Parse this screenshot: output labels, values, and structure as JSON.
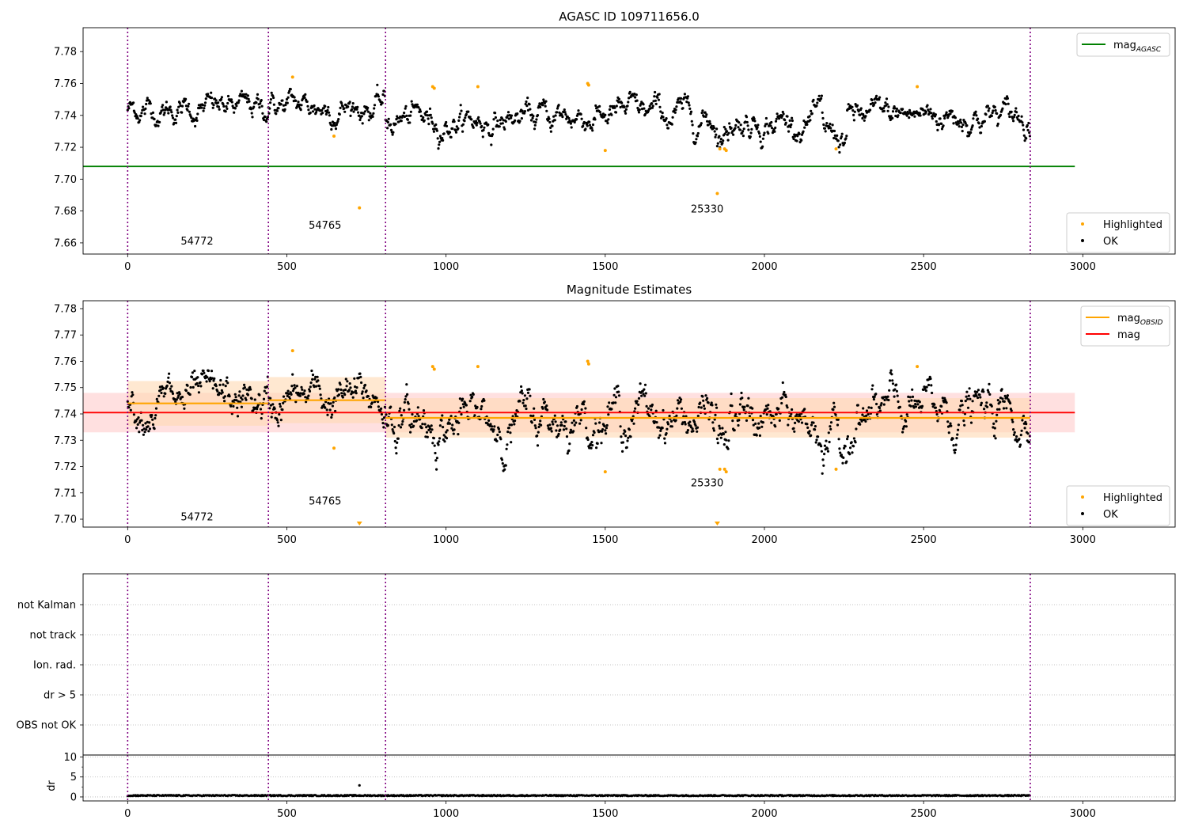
{
  "colors": {
    "ok": "#000000",
    "highlighted": "#ffa500",
    "agasc": "#008000",
    "mag": "#ff0000",
    "mag_obsid": "#ffa500",
    "obs_boundary": "#800080",
    "mag_band": "#ffcccc",
    "obsid_band": "#ffd9b3"
  },
  "chart_data": [
    {
      "type": "scatter",
      "title": "AGASC ID 109711656.0",
      "xlim": [
        -140,
        3290
      ],
      "ylim": [
        7.653,
        7.795
      ],
      "xticks": [
        "0",
        "500",
        "1000",
        "1500",
        "2000",
        "2500",
        "3000"
      ],
      "xtick_values": [
        0,
        500,
        1000,
        1500,
        2000,
        2500,
        3000
      ],
      "yticks": [
        "7.66",
        "7.68",
        "7.70",
        "7.72",
        "7.74",
        "7.76",
        "7.78"
      ],
      "ytick_values": [
        7.66,
        7.68,
        7.7,
        7.72,
        7.74,
        7.76,
        7.78
      ],
      "obs_boundaries": [
        0,
        442,
        810,
        2835
      ],
      "obs_labels": [
        {
          "text": "54772",
          "x": 218,
          "y": 7.659
        },
        {
          "text": "54765",
          "x": 620,
          "y": 7.669
        },
        {
          "text": "25330",
          "x": 1820,
          "y": 7.679
        }
      ],
      "lines": [
        {
          "name": "mag_AGASC",
          "y": 7.708,
          "x": [
            -140,
            2975
          ]
        }
      ],
      "ok_segments": [
        {
          "x0": 0,
          "x1": 442,
          "mean": 7.744,
          "spread": 0.0052
        },
        {
          "x0": 442,
          "x1": 810,
          "mean": 7.7455,
          "spread": 0.0055
        },
        {
          "x0": 810,
          "x1": 2835,
          "mean": 7.7385,
          "spread": 0.0058
        }
      ],
      "highlighted": [
        {
          "x": 518,
          "y": 7.764
        },
        {
          "x": 648,
          "y": 7.727
        },
        {
          "x": 728,
          "y": 7.682
        },
        {
          "x": 958,
          "y": 7.758
        },
        {
          "x": 963,
          "y": 7.757
        },
        {
          "x": 1100,
          "y": 7.758
        },
        {
          "x": 1445,
          "y": 7.76
        },
        {
          "x": 1448,
          "y": 7.759
        },
        {
          "x": 1500,
          "y": 7.718
        },
        {
          "x": 1852,
          "y": 7.691
        },
        {
          "x": 1860,
          "y": 7.719
        },
        {
          "x": 1875,
          "y": 7.719
        },
        {
          "x": 1880,
          "y": 7.718
        },
        {
          "x": 2225,
          "y": 7.719
        },
        {
          "x": 2480,
          "y": 7.758
        }
      ],
      "legend": {
        "upper": [
          {
            "label": "mag",
            "sub": "AGASC",
            "kind": "line",
            "color": "#008000"
          }
        ],
        "lower": [
          {
            "label": "Highlighted",
            "kind": "dot",
            "color": "#ffa500"
          },
          {
            "label": "OK",
            "kind": "dot",
            "color": "#000000"
          }
        ]
      }
    },
    {
      "type": "scatter",
      "title": "Magnitude Estimates",
      "xlim": [
        -140,
        3290
      ],
      "ylim": [
        7.697,
        7.783
      ],
      "xticks": [
        "0",
        "500",
        "1000",
        "1500",
        "2000",
        "2500",
        "3000"
      ],
      "xtick_values": [
        0,
        500,
        1000,
        1500,
        2000,
        2500,
        3000
      ],
      "yticks": [
        "7.70",
        "7.71",
        "7.72",
        "7.73",
        "7.74",
        "7.75",
        "7.76",
        "7.77",
        "7.78"
      ],
      "ytick_values": [
        7.7,
        7.71,
        7.72,
        7.73,
        7.74,
        7.75,
        7.76,
        7.77,
        7.78
      ],
      "obs_boundaries": [
        0,
        442,
        810,
        2835
      ],
      "obs_labels": [
        {
          "text": "54772",
          "x": 218,
          "y": 7.6995
        },
        {
          "text": "54765",
          "x": 620,
          "y": 7.7055
        },
        {
          "text": "25330",
          "x": 1820,
          "y": 7.7125
        }
      ],
      "mag": {
        "value": 7.7405,
        "band": [
          7.733,
          7.748
        ],
        "x": [
          -140,
          2975
        ]
      },
      "mag_obsid": [
        {
          "x0": 0,
          "x1": 442,
          "value": 7.744,
          "band": [
            7.7355,
            7.7525
          ]
        },
        {
          "x0": 442,
          "x1": 810,
          "value": 7.7452,
          "band": [
            7.7365,
            7.754
          ]
        },
        {
          "x0": 810,
          "x1": 2835,
          "value": 7.7385,
          "band": [
            7.731,
            7.746
          ]
        }
      ],
      "ok_segments": [
        {
          "x0": 0,
          "x1": 442,
          "mean": 7.744,
          "spread": 0.0052
        },
        {
          "x0": 442,
          "x1": 810,
          "mean": 7.7455,
          "spread": 0.0055
        },
        {
          "x0": 810,
          "x1": 2835,
          "mean": 7.7385,
          "spread": 0.0058
        }
      ],
      "highlighted": [
        {
          "x": 518,
          "y": 7.764
        },
        {
          "x": 648,
          "y": 7.727
        },
        {
          "x": 958,
          "y": 7.758
        },
        {
          "x": 963,
          "y": 7.757
        },
        {
          "x": 1100,
          "y": 7.758
        },
        {
          "x": 1445,
          "y": 7.76
        },
        {
          "x": 1448,
          "y": 7.759
        },
        {
          "x": 1500,
          "y": 7.718
        },
        {
          "x": 1860,
          "y": 7.719
        },
        {
          "x": 1875,
          "y": 7.719
        },
        {
          "x": 1880,
          "y": 7.718
        },
        {
          "x": 2225,
          "y": 7.719
        },
        {
          "x": 2480,
          "y": 7.758
        }
      ],
      "offscale_markers": [
        {
          "x": 728
        },
        {
          "x": 1852
        }
      ],
      "legend": {
        "upper": [
          {
            "label": "mag",
            "sub": "OBSID",
            "kind": "line",
            "color": "#ffa500"
          },
          {
            "label": "mag",
            "sub": "",
            "kind": "line",
            "color": "#ff0000"
          }
        ],
        "lower": [
          {
            "label": "Highlighted",
            "kind": "dot",
            "color": "#ffa500"
          },
          {
            "label": "OK",
            "kind": "dot",
            "color": "#000000"
          }
        ]
      }
    },
    {
      "type": "scatter",
      "title": "",
      "xlim": [
        -140,
        3290
      ],
      "categories": [
        "OBS not OK",
        "dr > 5",
        "Ion. rad.",
        "not track",
        "not Kalman"
      ],
      "obs_boundaries": [
        0,
        442,
        810,
        2835
      ],
      "points": []
    },
    {
      "type": "scatter",
      "title": "",
      "ylabel": "dr",
      "xlim": [
        -140,
        3290
      ],
      "ylim": [
        -1,
        10.5
      ],
      "xticks": [
        "0",
        "500",
        "1000",
        "1500",
        "2000",
        "2500",
        "3000"
      ],
      "xtick_values": [
        0,
        500,
        1000,
        1500,
        2000,
        2500,
        3000
      ],
      "yticks": [
        "0",
        "5",
        "10"
      ],
      "ytick_values": [
        0,
        5,
        10
      ],
      "obs_boundaries": [
        0,
        442,
        810,
        2835
      ],
      "dr_baseline": {
        "x0": 0,
        "x1": 2835,
        "mean": 0.35,
        "spread": 0.15
      },
      "outliers": [
        {
          "x": 728,
          "y": 2.9
        }
      ]
    }
  ]
}
